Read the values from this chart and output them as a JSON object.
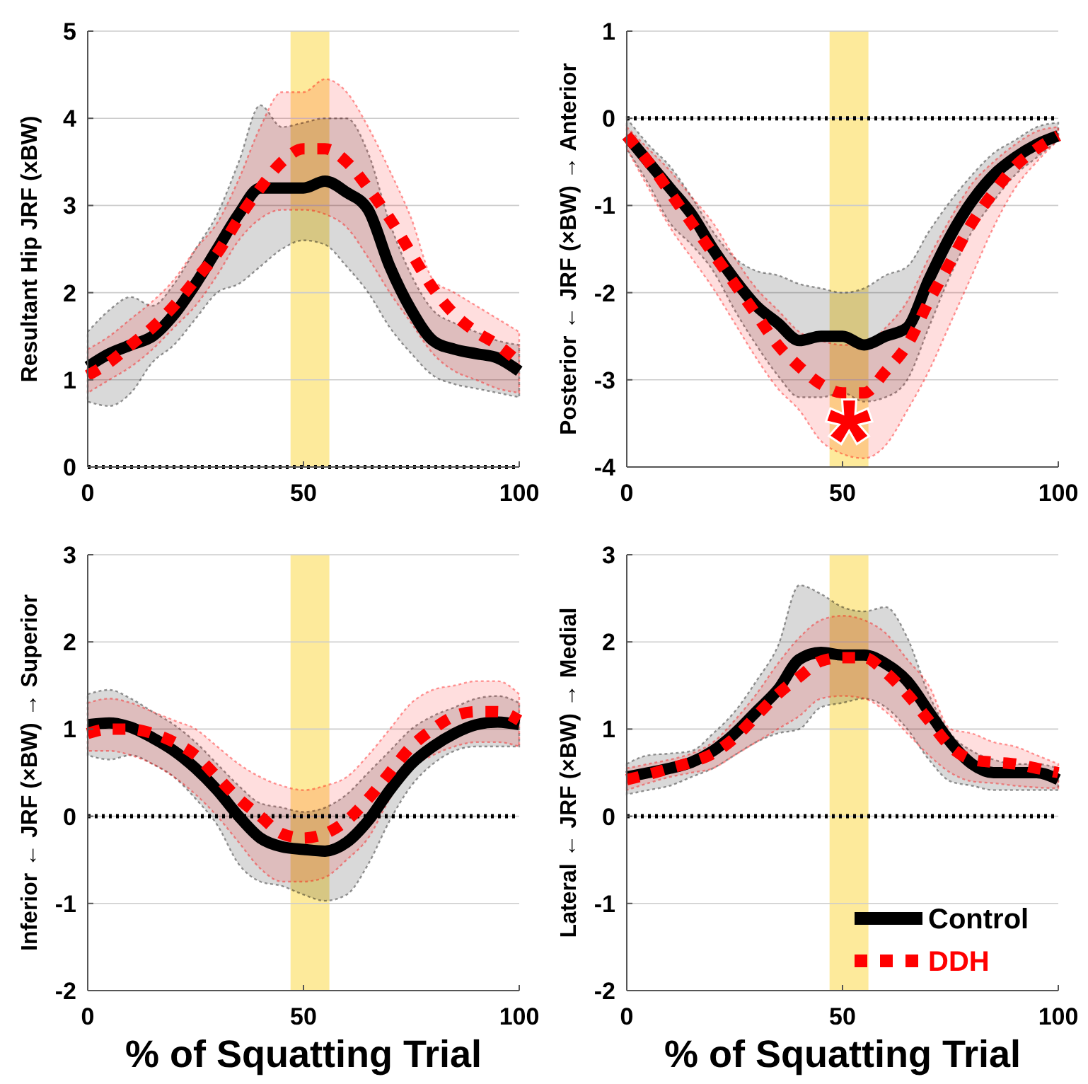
{
  "chart_data": [
    {
      "type": "line",
      "ylabel": "Resultant Hip JRF (xBW)",
      "x": [
        0,
        5,
        10,
        15,
        20,
        25,
        30,
        35,
        40,
        45,
        50,
        55,
        60,
        65,
        70,
        75,
        80,
        85,
        90,
        95,
        100
      ],
      "xlim": [
        0,
        100
      ],
      "xticks": [
        0,
        50,
        100
      ],
      "ylim": [
        0,
        5
      ],
      "yticks": [
        0,
        1,
        2,
        3,
        4,
        5
      ],
      "grid": "y",
      "legend": false,
      "bands": [
        {
          "axis": "x",
          "from": 47,
          "to": 56,
          "color": "#fde68a"
        }
      ],
      "ref_lines": [
        {
          "axis": "y",
          "value": 0,
          "color": "#000000",
          "line_style": "dotted"
        }
      ],
      "series": [
        {
          "color": "#000000",
          "line_style": "solid",
          "values": [
            1.15,
            1.3,
            1.4,
            1.5,
            1.75,
            2.1,
            2.5,
            2.9,
            3.2,
            3.2,
            3.2,
            3.28,
            3.15,
            2.95,
            2.3,
            1.8,
            1.45,
            1.35,
            1.3,
            1.25,
            1.1
          ],
          "lower": [
            0.75,
            0.7,
            0.85,
            1.2,
            1.4,
            1.7,
            2.0,
            2.1,
            2.3,
            2.5,
            2.6,
            2.55,
            2.3,
            2.0,
            1.6,
            1.3,
            1.05,
            0.95,
            0.9,
            0.85,
            0.8
          ],
          "upper": [
            1.55,
            1.8,
            1.95,
            1.85,
            2.1,
            2.5,
            2.9,
            3.5,
            4.15,
            3.9,
            3.95,
            4.0,
            4.0,
            3.6,
            2.8,
            2.2,
            1.8,
            1.65,
            1.55,
            1.45,
            1.4
          ]
        },
        {
          "color": "#ff0000",
          "line_style": "dashed",
          "values": [
            1.05,
            1.2,
            1.4,
            1.6,
            1.85,
            2.15,
            2.45,
            2.85,
            3.2,
            3.5,
            3.65,
            3.65,
            3.5,
            3.2,
            2.85,
            2.45,
            2.05,
            1.75,
            1.55,
            1.4,
            1.2
          ],
          "lower": [
            0.85,
            1.0,
            1.15,
            1.35,
            1.6,
            1.85,
            2.2,
            2.6,
            2.85,
            2.95,
            2.95,
            2.9,
            2.75,
            2.4,
            2.0,
            1.65,
            1.3,
            1.1,
            1.0,
            0.9,
            0.85
          ],
          "upper": [
            1.35,
            1.5,
            1.7,
            1.9,
            2.15,
            2.5,
            2.8,
            3.3,
            3.9,
            4.3,
            4.3,
            4.45,
            4.3,
            3.9,
            3.4,
            2.85,
            2.15,
            2.0,
            1.85,
            1.7,
            1.55
          ]
        }
      ]
    },
    {
      "type": "line",
      "ylabel": "Posterior ← JRF (×BW) → Anterior",
      "x": [
        0,
        5,
        10,
        15,
        20,
        25,
        30,
        35,
        40,
        45,
        50,
        55,
        60,
        65,
        70,
        75,
        80,
        85,
        90,
        95,
        100
      ],
      "xlim": [
        0,
        100
      ],
      "xticks": [
        0,
        50,
        100
      ],
      "ylim": [
        -4,
        1
      ],
      "yticks": [
        -4,
        -3,
        -2,
        -1,
        0,
        1
      ],
      "grid": "y",
      "legend": false,
      "bands": [
        {
          "axis": "x",
          "from": 47,
          "to": 56,
          "color": "#fde68a"
        }
      ],
      "ref_lines": [
        {
          "axis": "y",
          "value": 0,
          "color": "#000000",
          "line_style": "dotted"
        }
      ],
      "annotations": [
        "*"
      ],
      "series": [
        {
          "color": "#000000",
          "line_style": "solid",
          "values": [
            -0.2,
            -0.5,
            -0.8,
            -1.1,
            -1.5,
            -1.85,
            -2.15,
            -2.35,
            -2.55,
            -2.5,
            -2.5,
            -2.6,
            -2.5,
            -2.4,
            -1.85,
            -1.35,
            -0.95,
            -0.65,
            -0.45,
            -0.3,
            -0.2
          ],
          "lower": [
            -0.35,
            -0.75,
            -1.2,
            -1.45,
            -1.75,
            -2.2,
            -2.6,
            -2.95,
            -3.2,
            -3.2,
            -3.15,
            -3.25,
            -3.2,
            -3.0,
            -2.4,
            -1.8,
            -1.3,
            -0.95,
            -0.65,
            -0.45,
            -0.25
          ],
          "upper": [
            0,
            -0.3,
            -0.55,
            -0.9,
            -1.3,
            -1.6,
            -1.75,
            -1.8,
            -1.9,
            -1.95,
            -2.0,
            -1.95,
            -1.8,
            -1.7,
            -1.3,
            -0.95,
            -0.65,
            -0.4,
            -0.25,
            -0.1,
            -0.05
          ]
        },
        {
          "color": "#ff0000",
          "line_style": "dashed",
          "values": [
            -0.2,
            -0.5,
            -0.85,
            -1.2,
            -1.55,
            -1.9,
            -2.25,
            -2.6,
            -2.85,
            -3.05,
            -3.15,
            -3.15,
            -2.9,
            -2.6,
            -2.1,
            -1.65,
            -1.2,
            -0.85,
            -0.55,
            -0.35,
            -0.2
          ],
          "lower": [
            -0.35,
            -0.8,
            -1.25,
            -1.6,
            -1.95,
            -2.35,
            -2.75,
            -3.1,
            -3.35,
            -3.7,
            -3.85,
            -3.9,
            -3.75,
            -3.35,
            -2.9,
            -2.35,
            -1.8,
            -1.25,
            -0.8,
            -0.5,
            -0.25
          ],
          "upper": [
            -0.1,
            -0.35,
            -0.6,
            -0.9,
            -1.2,
            -1.6,
            -1.95,
            -2.2,
            -2.45,
            -2.55,
            -2.6,
            -2.6,
            -2.4,
            -2.1,
            -1.6,
            -1.15,
            -0.75,
            -0.5,
            -0.3,
            -0.15,
            -0.1
          ]
        }
      ]
    },
    {
      "type": "line",
      "xlabel": "% of Squatting Trial",
      "ylabel": "Inferior ← JRF (×BW) → Superior",
      "x": [
        0,
        5,
        10,
        15,
        20,
        25,
        30,
        35,
        40,
        45,
        50,
        55,
        60,
        65,
        70,
        75,
        80,
        85,
        90,
        95,
        100
      ],
      "xlim": [
        0,
        100
      ],
      "xticks": [
        0,
        50,
        100
      ],
      "ylim": [
        -2,
        3
      ],
      "yticks": [
        -2,
        -1,
        0,
        1,
        2,
        3
      ],
      "grid": "y",
      "legend": false,
      "bands": [
        {
          "axis": "x",
          "from": 47,
          "to": 56,
          "color": "#fde68a"
        }
      ],
      "ref_lines": [
        {
          "axis": "y",
          "value": 0,
          "color": "#000000",
          "line_style": "dotted"
        }
      ],
      "series": [
        {
          "color": "#000000",
          "line_style": "solid",
          "values": [
            1.05,
            1.07,
            1.02,
            0.9,
            0.75,
            0.55,
            0.3,
            0.0,
            -0.25,
            -0.35,
            -0.38,
            -0.4,
            -0.3,
            -0.05,
            0.3,
            0.6,
            0.8,
            0.95,
            1.05,
            1.08,
            1.05
          ],
          "lower": [
            0.7,
            0.65,
            0.7,
            0.6,
            0.45,
            0.2,
            -0.1,
            -0.55,
            -0.75,
            -0.8,
            -0.9,
            -0.97,
            -0.9,
            -0.55,
            -0.05,
            0.35,
            0.6,
            0.75,
            0.8,
            0.8,
            0.8
          ],
          "upper": [
            1.4,
            1.45,
            1.35,
            1.2,
            1.05,
            0.85,
            0.6,
            0.35,
            0.15,
            0.1,
            0.05,
            0.1,
            0.25,
            0.5,
            0.75,
            1.0,
            1.15,
            1.25,
            1.35,
            1.38,
            1.3
          ]
        },
        {
          "color": "#ff0000",
          "line_style": "dashed",
          "values": [
            0.95,
            1.0,
            1.0,
            0.95,
            0.85,
            0.7,
            0.45,
            0.2,
            0.0,
            -0.2,
            -0.25,
            -0.2,
            -0.05,
            0.2,
            0.5,
            0.8,
            1.0,
            1.15,
            1.2,
            1.2,
            1.1
          ],
          "lower": [
            0.75,
            0.75,
            0.7,
            0.6,
            0.45,
            0.25,
            0.0,
            -0.3,
            -0.6,
            -0.75,
            -0.75,
            -0.7,
            -0.5,
            -0.25,
            0.2,
            0.55,
            0.7,
            0.8,
            0.85,
            0.85,
            0.8
          ],
          "upper": [
            1.3,
            1.35,
            1.3,
            1.2,
            1.1,
            1.0,
            0.8,
            0.6,
            0.45,
            0.35,
            0.3,
            0.35,
            0.45,
            0.7,
            1.0,
            1.3,
            1.45,
            1.5,
            1.55,
            1.55,
            1.4
          ]
        }
      ]
    },
    {
      "type": "line",
      "xlabel": "% of Squatting Trial",
      "ylabel": "Lateral ← JRF (×BW) → Medial",
      "x": [
        0,
        5,
        10,
        15,
        20,
        25,
        30,
        35,
        40,
        45,
        50,
        55,
        60,
        65,
        70,
        75,
        80,
        85,
        90,
        95,
        100
      ],
      "xlim": [
        0,
        100
      ],
      "xticks": [
        0,
        50,
        100
      ],
      "ylim": [
        -2,
        3
      ],
      "yticks": [
        -2,
        -1,
        0,
        1,
        2,
        3
      ],
      "grid": "y",
      "legend": "bottom right",
      "bands": [
        {
          "axis": "x",
          "from": 47,
          "to": 56,
          "color": "#fde68a"
        }
      ],
      "ref_lines": [
        {
          "axis": "y",
          "value": 0,
          "color": "#000000",
          "line_style": "dotted"
        }
      ],
      "series": [
        {
          "name": "Control",
          "color": "#000000",
          "line_style": "solid",
          "values": [
            0.45,
            0.5,
            0.55,
            0.62,
            0.75,
            0.95,
            1.2,
            1.45,
            1.8,
            1.88,
            1.85,
            1.85,
            1.75,
            1.55,
            1.2,
            0.85,
            0.6,
            0.5,
            0.5,
            0.5,
            0.42
          ],
          "lower": [
            0.25,
            0.3,
            0.35,
            0.45,
            0.55,
            0.7,
            0.85,
            0.95,
            1.0,
            1.25,
            1.3,
            1.35,
            1.25,
            1.0,
            0.65,
            0.4,
            0.35,
            0.3,
            0.3,
            0.3,
            0.3
          ],
          "upper": [
            0.6,
            0.7,
            0.72,
            0.75,
            0.95,
            1.2,
            1.55,
            1.95,
            2.65,
            2.55,
            2.4,
            2.35,
            2.4,
            2.05,
            1.4,
            0.95,
            0.75,
            0.65,
            0.6,
            0.6,
            0.55
          ]
        },
        {
          "name": "DDH",
          "color": "#ff0000",
          "line_style": "dashed",
          "values": [
            0.42,
            0.48,
            0.55,
            0.62,
            0.72,
            0.9,
            1.15,
            1.4,
            1.6,
            1.78,
            1.82,
            1.82,
            1.65,
            1.4,
            1.1,
            0.8,
            0.65,
            0.62,
            0.6,
            0.55,
            0.5
          ],
          "lower": [
            0.3,
            0.38,
            0.45,
            0.5,
            0.55,
            0.7,
            0.85,
            1.0,
            1.15,
            1.35,
            1.38,
            1.35,
            1.2,
            0.95,
            0.7,
            0.5,
            0.4,
            0.38,
            0.35,
            0.33,
            0.32
          ],
          "upper": [
            0.55,
            0.6,
            0.65,
            0.72,
            0.85,
            1.1,
            1.4,
            1.75,
            2.05,
            2.25,
            2.3,
            2.25,
            2.1,
            1.8,
            1.5,
            1.0,
            0.95,
            0.85,
            0.8,
            0.7,
            0.6
          ]
        }
      ]
    }
  ]
}
